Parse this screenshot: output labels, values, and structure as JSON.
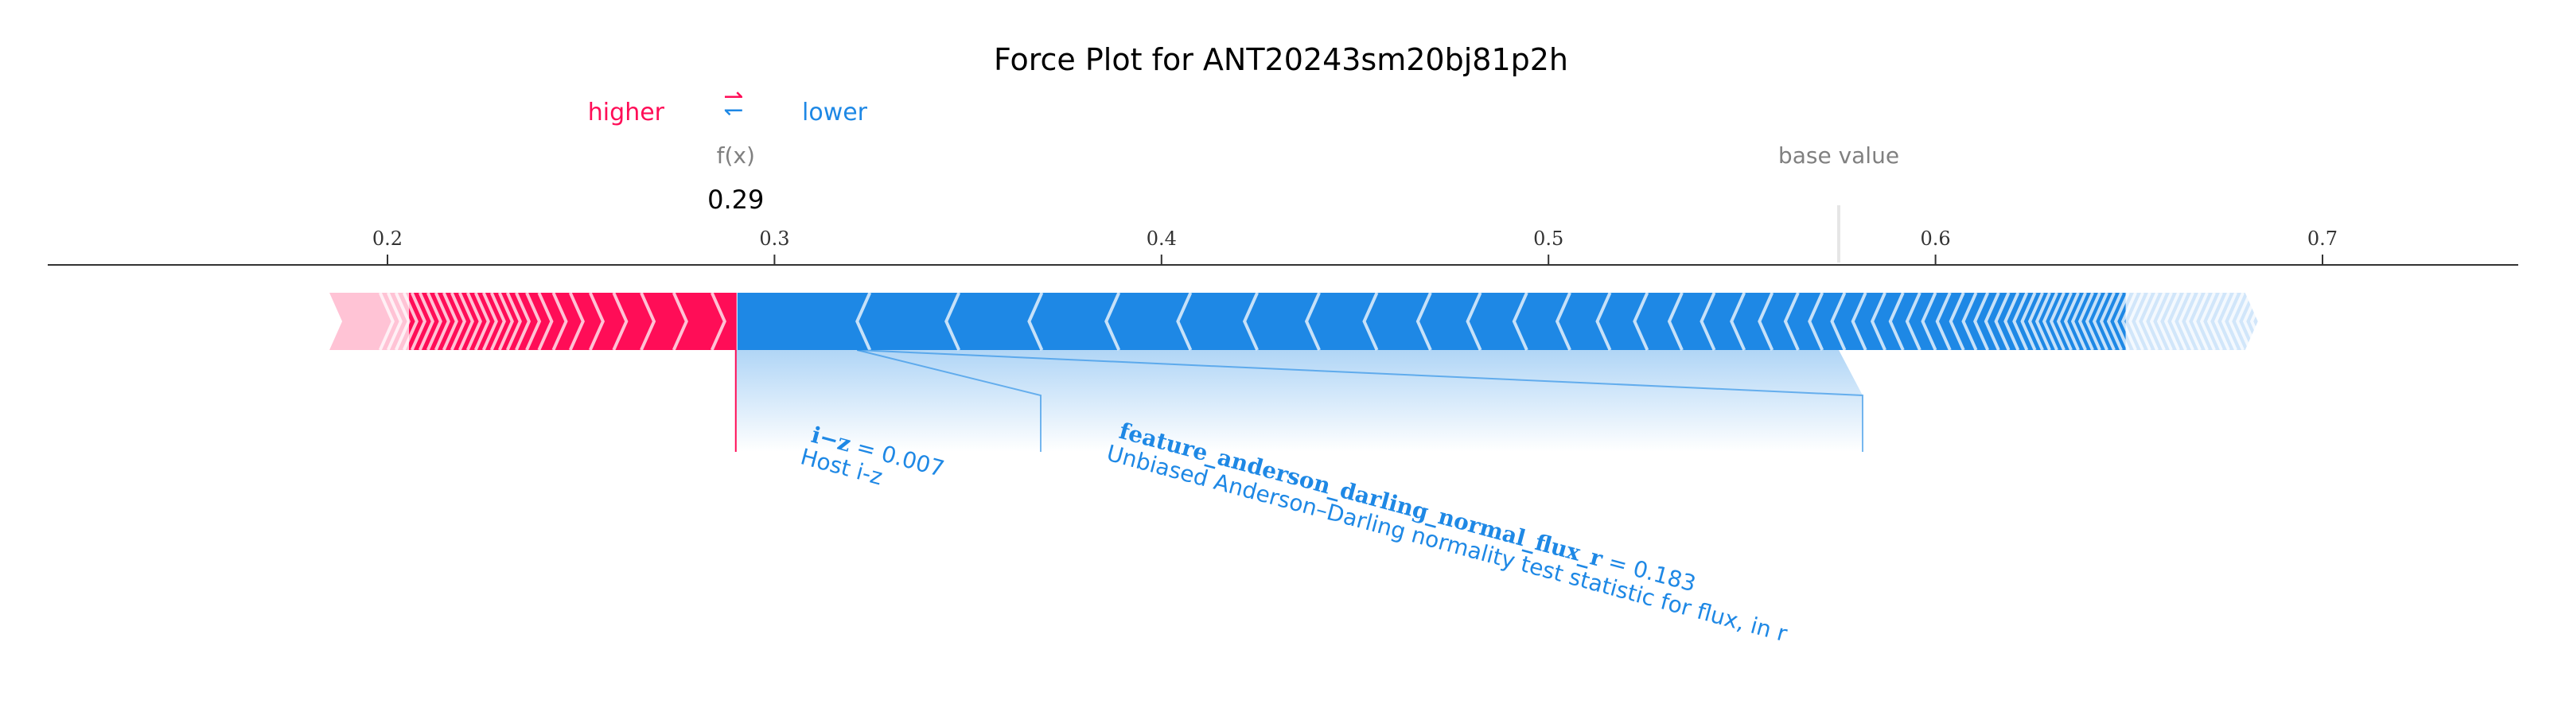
{
  "chart_data": {
    "type": "force",
    "title": "Force Plot for ANT20243sm20bj81p2h",
    "legend": {
      "higher": "higher",
      "lower": "lower",
      "arrow_glyph": "⇄"
    },
    "fx_label": "f(x)",
    "fx_value_label": "0.29",
    "fx_value": 0.29,
    "base_value_label": "base value",
    "base_value": 0.575,
    "xlim": [
      0.1,
      0.74
    ],
    "ticks": [
      {
        "value": 0.2,
        "label": "0.2"
      },
      {
        "value": 0.3,
        "label": "0.3"
      },
      {
        "value": 0.4,
        "label": "0.4"
      },
      {
        "value": 0.5,
        "label": "0.5"
      },
      {
        "value": 0.6,
        "label": "0.6"
      },
      {
        "value": 0.7,
        "label": "0.7"
      }
    ],
    "higher_range": [
      0.185,
      0.29
    ],
    "lower_range": [
      0.29,
      0.68
    ],
    "features": [
      {
        "name": "i−z",
        "value_text": " = 0.007",
        "description": "Host i-z",
        "bar_range": [
          0.29,
          0.323
        ]
      },
      {
        "name": "feature_anderson_darling_normal_flux_r",
        "value_text": " = 0.183",
        "description": "Unbiased Anderson–Darling normality test statistic for flux, in r",
        "bar_range": [
          0.323,
          0.575
        ]
      }
    ],
    "colors": {
      "higher": "#ff0d57",
      "lower": "#1e88e5",
      "higher_light": "#ffc3d5",
      "lower_light": "#d1e6fa",
      "base_line": "#e6e6e6",
      "axis": "#333333",
      "grey_text": "#808080"
    }
  }
}
